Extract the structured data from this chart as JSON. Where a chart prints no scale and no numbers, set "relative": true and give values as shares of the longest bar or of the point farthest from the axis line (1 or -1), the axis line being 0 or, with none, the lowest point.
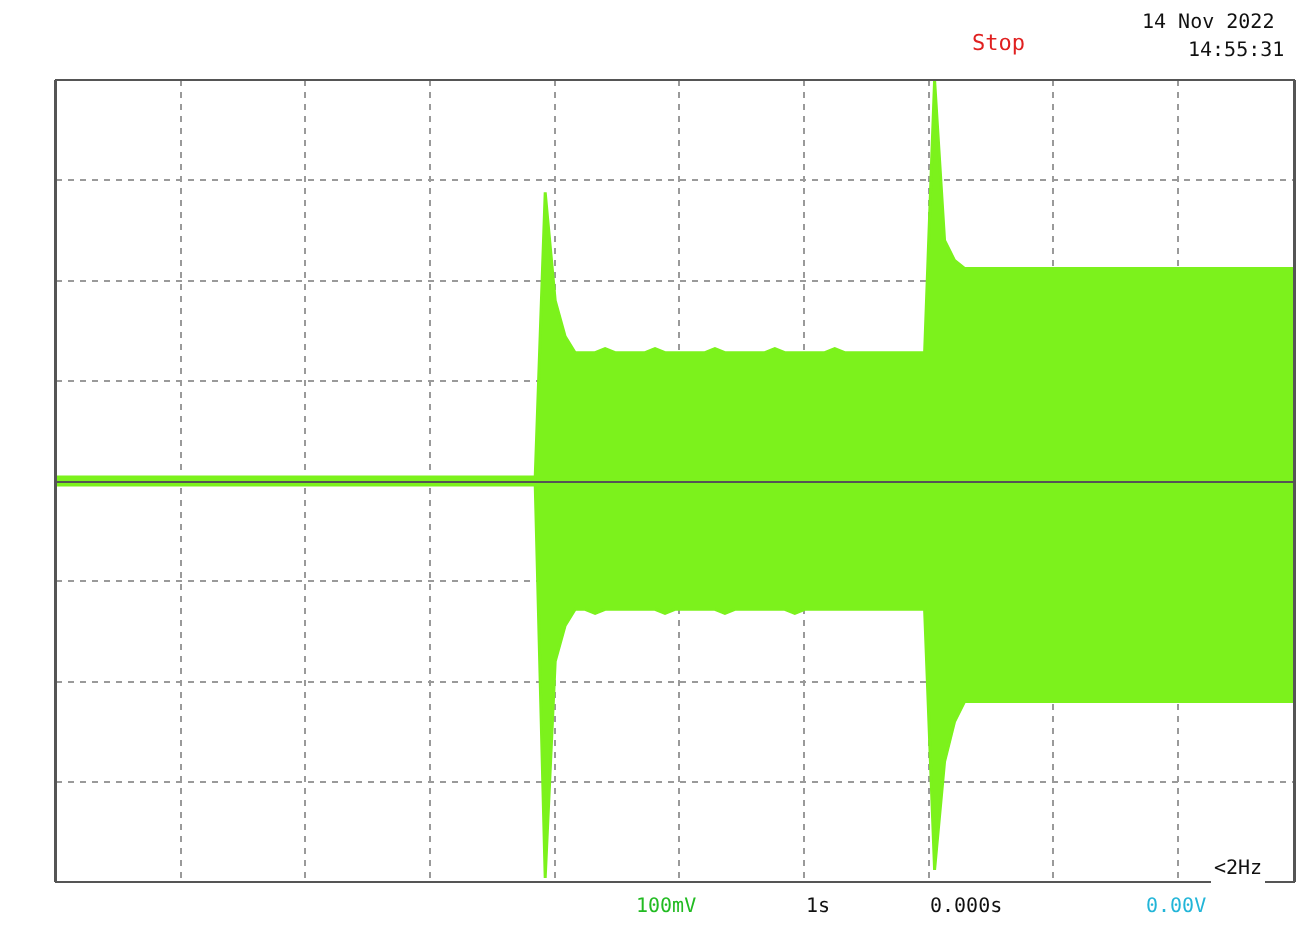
{
  "chart_data": {
    "type": "area",
    "relative": true,
    "grid": true,
    "marker": "none",
    "line_style": "solid",
    "categories": [
      null,
      null,
      null,
      null,
      null,
      null,
      null,
      null,
      null,
      null,
      null,
      null,
      null,
      null,
      null,
      null,
      null,
      null,
      null,
      null,
      null,
      null,
      null,
      null,
      null,
      null,
      null,
      null,
      null,
      null,
      null,
      null,
      null,
      null,
      null,
      null,
      null,
      null,
      null,
      null,
      null,
      null,
      null,
      null,
      null,
      null,
      null,
      null,
      null,
      null,
      null,
      null,
      null,
      null,
      null,
      null,
      null,
      null,
      null,
      null,
      null,
      null,
      null,
      null,
      null,
      null,
      null,
      null,
      null,
      null,
      null,
      null,
      null,
      null,
      null,
      null,
      null,
      null,
      null,
      null,
      null,
      null,
      null,
      null,
      null,
      null,
      null,
      null,
      null,
      null,
      null,
      null,
      null,
      null,
      null,
      null,
      null,
      null,
      null,
      null,
      null,
      null,
      null,
      null,
      null,
      null,
      null,
      null,
      null,
      null,
      null,
      null,
      null,
      null,
      null,
      null,
      null,
      null,
      null,
      null,
      null,
      null,
      null,
      null,
      null
    ],
    "series": [
      {
        "color": "#7cf21c",
        "values": [
          0.01,
          0.01,
          0.01,
          0.01,
          0.01,
          0.01,
          0.01,
          0.01,
          0.01,
          0.01,
          0.01,
          0.01,
          0.01,
          0.01,
          0.01,
          0.01,
          0.01,
          0.01,
          0.01,
          0.01,
          0.01,
          0.01,
          0.01,
          0.01,
          0.01,
          0.01,
          0.01,
          0.01,
          0.01,
          0.01,
          0.01,
          0.01,
          0.01,
          0.01,
          0.01,
          0.01,
          0.01,
          0.01,
          0.01,
          0.01,
          0.01,
          0.01,
          0.01,
          0.01,
          0.01,
          0.01,
          0.01,
          0.01,
          0.01,
          0.72,
          0.45,
          0.36,
          0.32,
          0.32,
          0.32,
          0.33,
          0.32,
          0.32,
          0.32,
          0.32,
          0.33,
          0.32,
          0.32,
          0.32,
          0.32,
          0.32,
          0.33,
          0.32,
          0.32,
          0.32,
          0.32,
          0.32,
          0.33,
          0.32,
          0.32,
          0.32,
          0.32,
          0.32,
          0.33,
          0.32,
          0.32,
          0.32,
          0.32,
          0.32,
          0.32,
          0.32,
          0.32,
          0.32,
          1.0,
          0.6,
          0.55,
          0.53,
          0.53,
          0.53,
          0.53,
          0.53,
          0.53,
          0.53,
          0.53,
          0.53,
          0.53,
          0.53,
          0.53,
          0.53,
          0.53,
          0.53,
          0.53,
          0.53,
          0.53,
          0.53,
          0.53,
          0.53,
          0.53,
          0.53,
          0.53,
          0.53,
          0.53,
          0.53,
          0.53,
          0.53,
          0.53,
          0.53,
          0.53,
          0.53,
          0.53
        ]
      },
      {
        "color": "#7cf21c",
        "values": [
          -0.01,
          -0.01,
          -0.01,
          -0.01,
          -0.01,
          -0.01,
          -0.01,
          -0.01,
          -0.01,
          -0.01,
          -0.01,
          -0.01,
          -0.01,
          -0.01,
          -0.01,
          -0.01,
          -0.01,
          -0.01,
          -0.01,
          -0.01,
          -0.01,
          -0.01,
          -0.01,
          -0.01,
          -0.01,
          -0.01,
          -0.01,
          -0.01,
          -0.01,
          -0.01,
          -0.01,
          -0.01,
          -0.01,
          -0.01,
          -0.01,
          -0.01,
          -0.01,
          -0.01,
          -0.01,
          -0.01,
          -0.01,
          -0.01,
          -0.01,
          -0.01,
          -0.01,
          -0.01,
          -0.01,
          -0.01,
          -0.01,
          -0.99,
          -0.45,
          -0.36,
          -0.32,
          -0.32,
          -0.33,
          -0.32,
          -0.32,
          -0.32,
          -0.32,
          -0.32,
          -0.32,
          -0.33,
          -0.32,
          -0.32,
          -0.32,
          -0.32,
          -0.32,
          -0.33,
          -0.32,
          -0.32,
          -0.32,
          -0.32,
          -0.32,
          -0.32,
          -0.33,
          -0.32,
          -0.32,
          -0.32,
          -0.32,
          -0.32,
          -0.32,
          -0.32,
          -0.32,
          -0.32,
          -0.32,
          -0.32,
          -0.32,
          -0.32,
          -0.97,
          -0.7,
          -0.6,
          -0.55,
          -0.55,
          -0.55,
          -0.55,
          -0.55,
          -0.55,
          -0.55,
          -0.55,
          -0.55,
          -0.55,
          -0.55,
          -0.55,
          -0.55,
          -0.55,
          -0.55,
          -0.55,
          -0.55,
          -0.55,
          -0.55,
          -0.55,
          -0.55,
          -0.55,
          -0.55,
          -0.55,
          -0.55,
          -0.55,
          -0.55,
          -0.55,
          -0.55,
          -0.55,
          -0.55,
          -0.55,
          -0.55,
          -0.55
        ]
      }
    ],
    "annotations": [
      "Stop",
      "14 Nov 2022",
      "14:55:31",
      "100mV",
      "1s",
      "0.000s",
      "0.00V",
      "<2Hz"
    ]
  }
}
